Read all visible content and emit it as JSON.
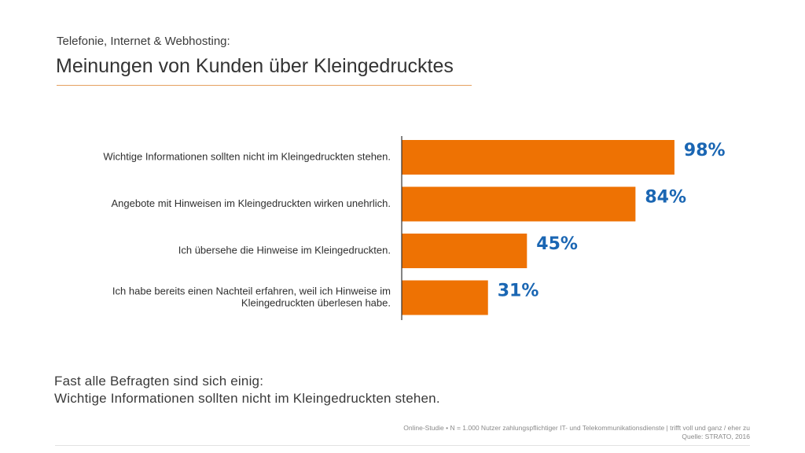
{
  "header": {
    "subtitle": "Telefonie, Internet & Webhosting:",
    "title": "Meinungen von Kunden über Kleingedrucktes"
  },
  "chart_data": {
    "type": "bar",
    "orientation": "horizontal",
    "title": "Meinungen von Kunden über Kleingedrucktes",
    "xlabel": "",
    "ylabel": "",
    "xlim": [
      0,
      100
    ],
    "unit": "%",
    "bar_color": "#ee7203",
    "value_color": "#1a66b3",
    "categories": [
      [
        "Wichtige Informationen sollten nicht im Kleingedruckten stehen."
      ],
      [
        "Angebote mit Hinweisen im Kleingedruckten wirken unehrlich."
      ],
      [
        "Ich übersehe die Hinweise im Kleingedruckten."
      ],
      [
        "Ich habe bereits einen Nachteil erfahren, weil ich Hinweise im",
        "Kleingedruckten überlesen habe."
      ]
    ],
    "values": [
      98,
      84,
      45,
      31
    ],
    "value_labels": [
      "98%",
      "84%",
      "45%",
      "31%"
    ]
  },
  "conclusion": {
    "line1": "Fast alle Befragten sind sich einig:",
    "line2": "Wichtige Informationen sollten nicht im Kleingedruckten stehen."
  },
  "footnote": {
    "line1": "Online-Studie • N = 1.000 Nutzer zahlungspflichtiger IT- und Telekommunikationsdienste | trifft voll und ganz / eher zu",
    "line2": "Quelle: STRATO, 2016"
  }
}
